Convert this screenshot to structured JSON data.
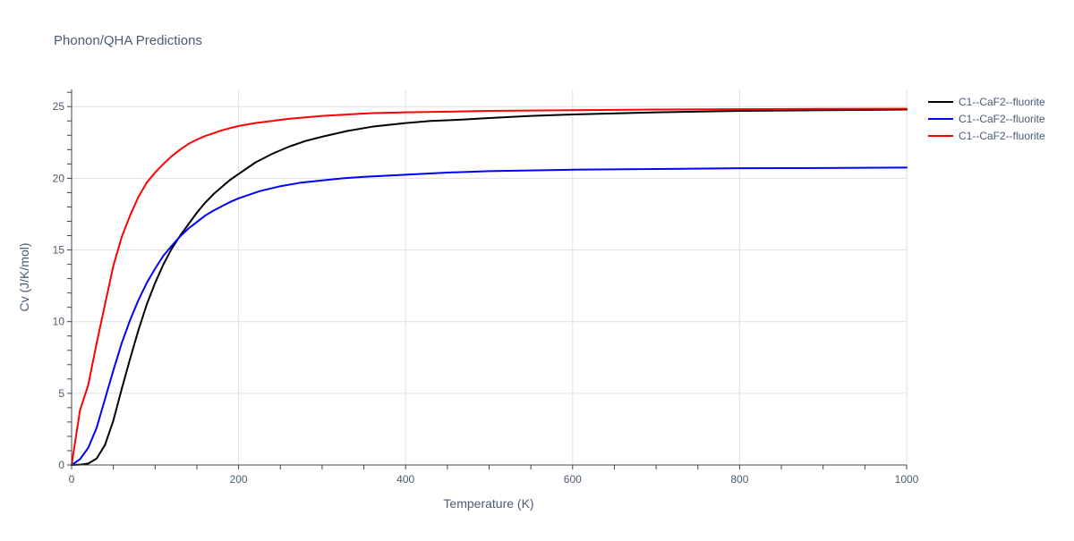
{
  "chart_data": {
    "type": "line",
    "title": "Phonon/QHA Predictions",
    "xlabel": "Temperature (K)",
    "ylabel": "Cv (J/K/mol)",
    "xlim": [
      0,
      1000
    ],
    "ylim": [
      0,
      26.2
    ],
    "xticks": [
      0,
      200,
      400,
      600,
      800,
      1000
    ],
    "xtick_labels": [
      "0",
      "200",
      "400",
      "600",
      "800",
      "1000"
    ],
    "yticks": [
      0,
      5,
      10,
      15,
      20,
      25
    ],
    "ytick_labels": [
      "0",
      "5",
      "10",
      "15",
      "20",
      "25"
    ],
    "grid": true,
    "legend_position": "top-right outside",
    "series": [
      {
        "name": "C1--CaF2--fluorite",
        "color": "#000000",
        "x": [
          0,
          10,
          20,
          30,
          40,
          50,
          60,
          70,
          80,
          90,
          100,
          110,
          120,
          130,
          140,
          150,
          160,
          170,
          180,
          190,
          200,
          220,
          240,
          260,
          280,
          300,
          330,
          360,
          400,
          430,
          470,
          500,
          550,
          600,
          700,
          800,
          900,
          1000
        ],
        "y": [
          0,
          0.02,
          0.1,
          0.45,
          1.4,
          3.1,
          5.3,
          7.4,
          9.4,
          11.2,
          12.7,
          14.0,
          15.1,
          16.0,
          16.8,
          17.6,
          18.3,
          18.9,
          19.4,
          19.9,
          20.3,
          21.1,
          21.7,
          22.2,
          22.6,
          22.9,
          23.3,
          23.6,
          23.85,
          24.0,
          24.1,
          24.2,
          24.35,
          24.45,
          24.6,
          24.7,
          24.75,
          24.8
        ]
      },
      {
        "name": "C1--CaF2--fluorite",
        "color": "#0000ff",
        "x": [
          0,
          10,
          20,
          30,
          40,
          50,
          60,
          70,
          80,
          90,
          100,
          110,
          120,
          130,
          140,
          150,
          160,
          170,
          180,
          190,
          200,
          225,
          250,
          275,
          300,
          325,
          350,
          400,
          450,
          500,
          600,
          700,
          800,
          900,
          1000
        ],
        "y": [
          0,
          0.4,
          1.2,
          2.6,
          4.6,
          6.6,
          8.5,
          10.1,
          11.5,
          12.7,
          13.7,
          14.6,
          15.3,
          15.95,
          16.5,
          16.95,
          17.4,
          17.75,
          18.05,
          18.35,
          18.6,
          19.1,
          19.45,
          19.7,
          19.85,
          20.0,
          20.1,
          20.25,
          20.4,
          20.5,
          20.6,
          20.65,
          20.7,
          20.72,
          20.75
        ]
      },
      {
        "name": "C1--CaF2--fluorite",
        "color": "#ff0000",
        "x": [
          0,
          10,
          20,
          30,
          40,
          50,
          60,
          70,
          80,
          90,
          100,
          110,
          120,
          130,
          140,
          150,
          160,
          170,
          180,
          190,
          200,
          220,
          240,
          260,
          280,
          300,
          330,
          360,
          400,
          450,
          500,
          600,
          700,
          800,
          900,
          1000
        ],
        "y": [
          0,
          3.8,
          5.6,
          8.5,
          11.2,
          13.9,
          15.9,
          17.4,
          18.7,
          19.7,
          20.4,
          21.0,
          21.55,
          22.0,
          22.4,
          22.7,
          22.95,
          23.15,
          23.35,
          23.5,
          23.65,
          23.85,
          24.0,
          24.15,
          24.25,
          24.35,
          24.45,
          24.55,
          24.6,
          24.65,
          24.7,
          24.75,
          24.8,
          24.82,
          24.84,
          24.85
        ]
      }
    ]
  }
}
